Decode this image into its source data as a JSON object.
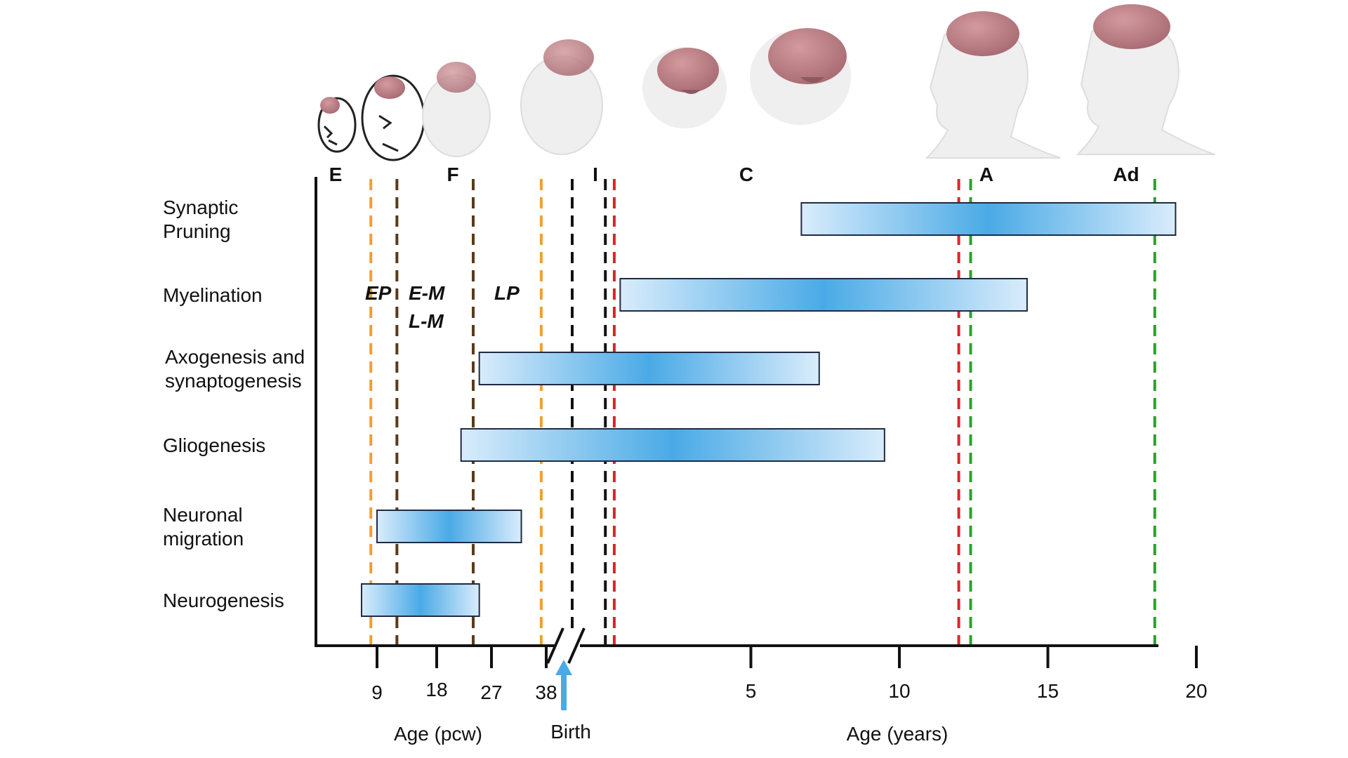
{
  "chart_data": {
    "type": "bar",
    "orientation": "horizontal-timeline",
    "title": "",
    "categories": [
      "Synaptic Pruning",
      "Myelination",
      "Axogenesis and synaptogenesis",
      "Gliogenesis",
      "Neuronal migration",
      "Neurogenesis"
    ],
    "category_lines": [
      [
        "Synaptic",
        "Pruning"
      ],
      [
        "Myelination"
      ],
      [
        "Axogenesis and",
        "synaptogenesis"
      ],
      [
        "Gliogenesis"
      ],
      [
        "Neuronal",
        "migration"
      ],
      [
        "Neurogenesis"
      ]
    ],
    "bars": [
      {
        "name": "Synaptic Pruning",
        "start_years": 6.7,
        "end_years": 19.3
      },
      {
        "name": "Myelination",
        "start_years": 0.6,
        "end_years": 14.3
      },
      {
        "name": "Axogenesis and synaptogenesis",
        "start_pcw": 25,
        "end_years": 7.3
      },
      {
        "name": "Gliogenesis",
        "start_pcw": 22,
        "end_years": 9.5
      },
      {
        "name": "Neuronal migration",
        "start_pcw": 9,
        "end_pcw": 33
      },
      {
        "name": "Neurogenesis",
        "start_pcw": 6.5,
        "end_pcw": 25
      }
    ],
    "x_axis_pcw": {
      "title": "Age (pcw)",
      "ticks": [
        9,
        18,
        27,
        38
      ]
    },
    "x_axis_years": {
      "title": "Age (years)",
      "ticks": [
        5,
        10,
        15,
        20
      ]
    },
    "birth_label": "Birth",
    "stages": [
      "E",
      "F",
      "I",
      "C",
      "A",
      "Ad"
    ],
    "phase_labels": [
      "EP",
      "E-M",
      "L-M",
      "LP"
    ],
    "stage_boundaries": [
      {
        "color": "#f0a030",
        "at_pcw": 8
      },
      {
        "color": "#f0a030",
        "at_pcw": 37
      },
      {
        "color": "#5a3a1c",
        "at_pcw": 12
      },
      {
        "color": "#5a3a1c",
        "at_pcw": 24
      },
      {
        "color": "#111111",
        "at": "birth"
      },
      {
        "color": "#111111",
        "at_years": 0.1
      },
      {
        "color": "#d62728",
        "at_years": 0.4
      },
      {
        "color": "#d62728",
        "at_years": 12
      },
      {
        "color": "#2ca02c",
        "at_years": 12.4
      },
      {
        "color": "#2ca02c",
        "at_years": 18.6
      }
    ],
    "bar_gradient": [
      "#d9ecfb",
      "#4aaae6"
    ],
    "legend": "none",
    "grid": false
  }
}
